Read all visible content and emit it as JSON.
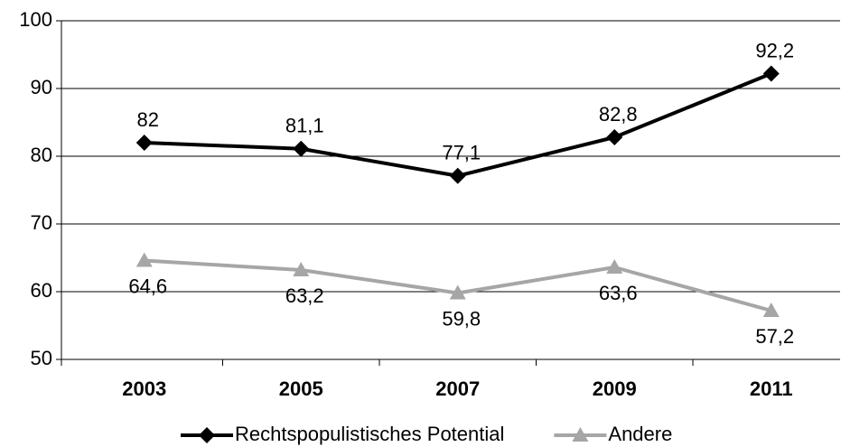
{
  "chart_data": {
    "type": "line",
    "categories": [
      "2003",
      "2005",
      "2007",
      "2009",
      "2011"
    ],
    "series": [
      {
        "name": "Rechtspopulistisches Potential",
        "color": "#000000",
        "marker": "diamond",
        "label_position": "above",
        "values": [
          82,
          81.1,
          77.1,
          82.8,
          92.2
        ],
        "value_labels": [
          "82",
          "81,1",
          "77,1",
          "82,8",
          "92,2"
        ]
      },
      {
        "name": "Andere",
        "color": "#a6a6a6",
        "marker": "triangle",
        "label_position": "below",
        "values": [
          64.6,
          63.2,
          59.8,
          63.6,
          57.2
        ],
        "value_labels": [
          "64,6",
          "63,2",
          "59,8",
          "63,6",
          "57,2"
        ]
      }
    ],
    "ylim": [
      50,
      100
    ],
    "yticks": [
      50,
      60,
      70,
      80,
      90,
      100
    ],
    "grid": true,
    "legend": "bottom"
  }
}
